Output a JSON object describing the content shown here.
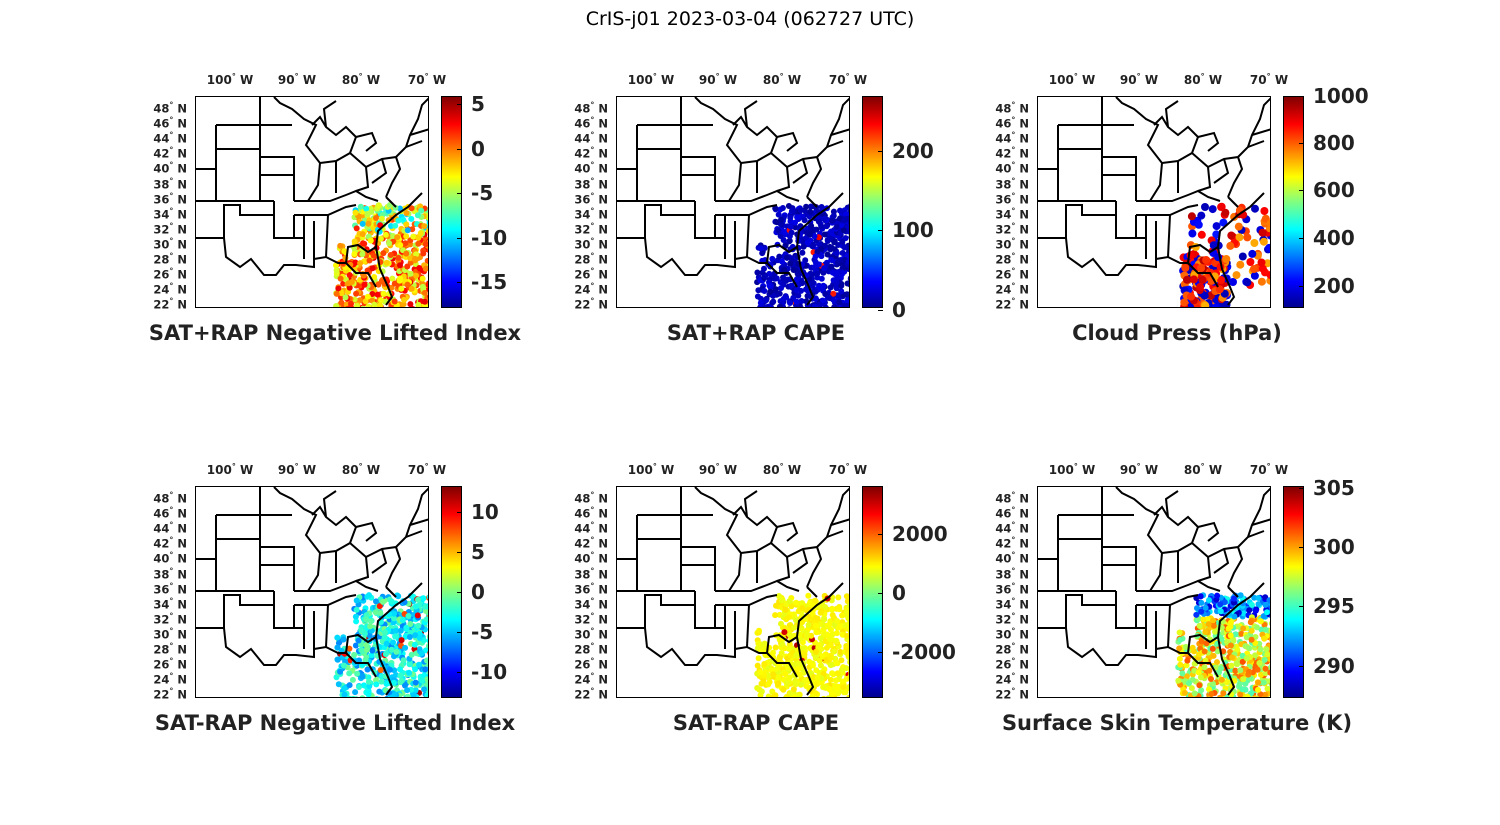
{
  "title": "CrIS-j01 2023-03-04 (062727 UTC)",
  "lon_labels": [
    "100",
    "90",
    "80",
    "70"
  ],
  "lon_suffix": "W",
  "lat_labels": [
    "48",
    "46",
    "44",
    "42",
    "40",
    "38",
    "36",
    "34",
    "32",
    "30",
    "28",
    "26",
    "24",
    "22"
  ],
  "lat_suffix": "N",
  "colormap": "jet",
  "panels": [
    {
      "id": "p1",
      "caption": "SAT+RAP Negative Lifted Index",
      "cbar_ticks": [
        "5",
        "0",
        "-5",
        "-10",
        "-15"
      ],
      "field": "mixed-warm",
      "coverage": "swath"
    },
    {
      "id": "p2",
      "caption": "SAT+RAP CAPE",
      "cbar_ticks": [
        "200",
        "100",
        "0"
      ],
      "field": "low",
      "coverage": "swath"
    },
    {
      "id": "p3",
      "caption": "Cloud Press (hPa)",
      "cbar_ticks": [
        "1000",
        "800",
        "600",
        "400",
        "200"
      ],
      "field": "cloud",
      "coverage": "scattered"
    },
    {
      "id": "p4",
      "caption": "SAT-RAP Negative Lifted Index",
      "cbar_ticks": [
        "10",
        "5",
        "0",
        "-5",
        "-10"
      ],
      "field": "cool",
      "coverage": "swath"
    },
    {
      "id": "p5",
      "caption": "SAT-RAP CAPE",
      "cbar_ticks": [
        "2000",
        "0",
        "-2000"
      ],
      "field": "mid",
      "coverage": "swath"
    },
    {
      "id": "p6",
      "caption": "Surface Skin Temperature (K)",
      "cbar_ticks": [
        "305",
        "300",
        "295",
        "290"
      ],
      "field": "skin",
      "coverage": "swath"
    }
  ]
}
